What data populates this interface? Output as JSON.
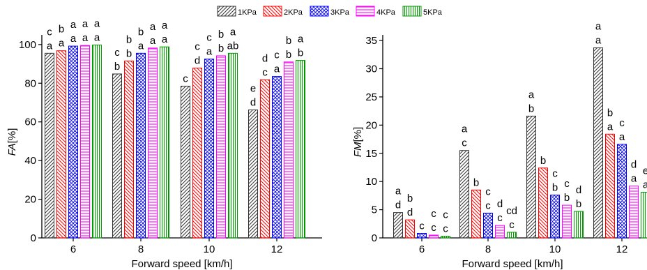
{
  "chart_data": [
    {
      "type": "bar",
      "categories": [
        "6",
        "8",
        "10",
        "12"
      ],
      "xlabel": "Forward speed [km/h]",
      "ylabel_italic": "FA",
      "ylabel_unit": "[%]",
      "ylim": [
        0,
        105
      ],
      "yticks": [
        "0",
        "20",
        "40",
        "60",
        "80",
        "100"
      ],
      "series": [
        {
          "name": "1KPa",
          "values": [
            95.5,
            84.8,
            78.5,
            66.2
          ],
          "letters": [
            [
              "a",
              "c"
            ],
            [
              "b",
              "c"
            ],
            [
              "c"
            ],
            [
              "d",
              "e"
            ]
          ]
        },
        {
          "name": "2KPa",
          "values": [
            96.8,
            91.5,
            87.8,
            81.8
          ],
          "letters": [
            [
              "a",
              "b"
            ],
            [
              "b",
              "b"
            ],
            [
              "d",
              "c"
            ],
            [
              "c",
              "d"
            ]
          ]
        },
        {
          "name": "3KPa",
          "values": [
            99.2,
            95.5,
            92.5,
            83.5
          ],
          "letters": [
            [
              "a",
              "a"
            ],
            [
              "a",
              "b"
            ],
            [
              "a",
              "c"
            ],
            [
              "a",
              "c"
            ]
          ]
        },
        {
          "name": "4KPa",
          "values": [
            99.5,
            98.2,
            94.2,
            91.0
          ],
          "letters": [
            [
              "a",
              "a"
            ],
            [
              "a",
              "a"
            ],
            [
              "b",
              "b"
            ],
            [
              "b",
              "b"
            ]
          ]
        },
        {
          "name": "5KPa",
          "values": [
            99.8,
            98.8,
            95.5,
            91.8
          ],
          "letters": [
            [
              "a",
              "a"
            ],
            [
              "a",
              "a"
            ],
            [
              "ab",
              "a"
            ],
            [
              "b",
              "a"
            ]
          ]
        }
      ]
    },
    {
      "type": "bar",
      "categories": [
        "6",
        "8",
        "10",
        "12"
      ],
      "xlabel": "Forward speed [km/h]",
      "ylabel_italic": "FM",
      "ylabel_unit": "[%]",
      "ylim": [
        0,
        36
      ],
      "yticks": [
        "0",
        "5",
        "10",
        "15",
        "20",
        "25",
        "30",
        "35"
      ],
      "series": [
        {
          "name": "1KPa",
          "values": [
            4.5,
            15.5,
            21.6,
            33.7
          ],
          "letters": [
            [
              "d",
              "a"
            ],
            [
              "c",
              "a"
            ],
            [
              "b",
              "a"
            ],
            [
              "a",
              "a"
            ]
          ]
        },
        {
          "name": "2KPa",
          "values": [
            3.2,
            8.5,
            12.4,
            18.4
          ],
          "letters": [
            [
              "d",
              "b"
            ],
            [
              "b"
            ],
            [
              "b"
            ],
            [
              "a",
              "b"
            ]
          ]
        },
        {
          "name": "3KPa",
          "values": [
            0.8,
            4.4,
            7.6,
            16.6
          ],
          "letters": [
            [
              "c"
            ],
            [
              "c",
              "c"
            ],
            [
              "b",
              "c"
            ],
            [
              "a",
              "c"
            ]
          ]
        },
        {
          "name": "4KPa",
          "values": [
            0.5,
            2.2,
            5.8,
            9.2
          ],
          "letters": [
            [
              "c",
              "c"
            ],
            [
              "c",
              "d"
            ],
            [
              "b",
              "c"
            ],
            [
              "a",
              "d"
            ]
          ]
        },
        {
          "name": "5KPa",
          "values": [
            0.3,
            1.0,
            4.7,
            8.1
          ],
          "letters": [
            [
              "c",
              "c"
            ],
            [
              "c",
              "cd"
            ],
            [
              "b",
              "d"
            ],
            [
              "a",
              "e"
            ]
          ]
        }
      ]
    }
  ],
  "legend": [
    {
      "label": "1KPa",
      "color": "#333333",
      "pattern": "diag-left"
    },
    {
      "label": "2KPa",
      "color": "#ff0000",
      "pattern": "diag-right"
    },
    {
      "label": "3KPa",
      "color": "#0000ff",
      "pattern": "cross"
    },
    {
      "label": "4KPa",
      "color": "#ff00ff",
      "pattern": "horizontal"
    },
    {
      "label": "5KPa",
      "color": "#009900",
      "pattern": "vertical"
    }
  ]
}
